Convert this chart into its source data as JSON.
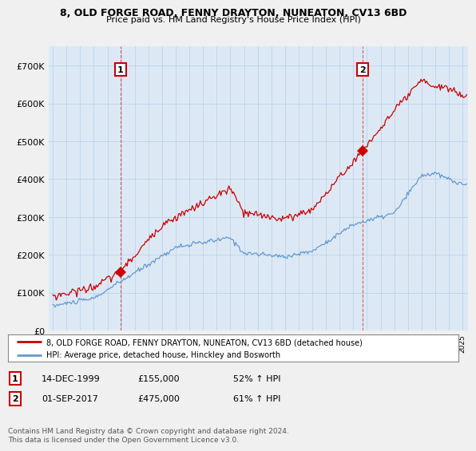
{
  "title": "8, OLD FORGE ROAD, FENNY DRAYTON, NUNEATON, CV13 6BD",
  "subtitle": "Price paid vs. HM Land Registry's House Price Index (HPI)",
  "red_label": "8, OLD FORGE ROAD, FENNY DRAYTON, NUNEATON, CV13 6BD (detached house)",
  "blue_label": "HPI: Average price, detached house, Hinckley and Bosworth",
  "annotation1_date": "14-DEC-1999",
  "annotation1_price": "£155,000",
  "annotation1_hpi": "52% ↑ HPI",
  "annotation2_date": "01-SEP-2017",
  "annotation2_price": "£475,000",
  "annotation2_hpi": "61% ↑ HPI",
  "footer": "Contains HM Land Registry data © Crown copyright and database right 2024.\nThis data is licensed under the Open Government Licence v3.0.",
  "red_color": "#cc0000",
  "blue_color": "#6699cc",
  "background_color": "#f0f0f0",
  "plot_background": "#dce9f5",
  "ylim": [
    0,
    750000
  ],
  "yticks": [
    0,
    100000,
    200000,
    300000,
    400000,
    500000,
    600000,
    700000
  ],
  "sale1_x": 1999.95,
  "sale1_y": 155000,
  "sale2_x": 2017.67,
  "sale2_y": 475000,
  "xmin": 1994.7,
  "xmax": 2025.4
}
